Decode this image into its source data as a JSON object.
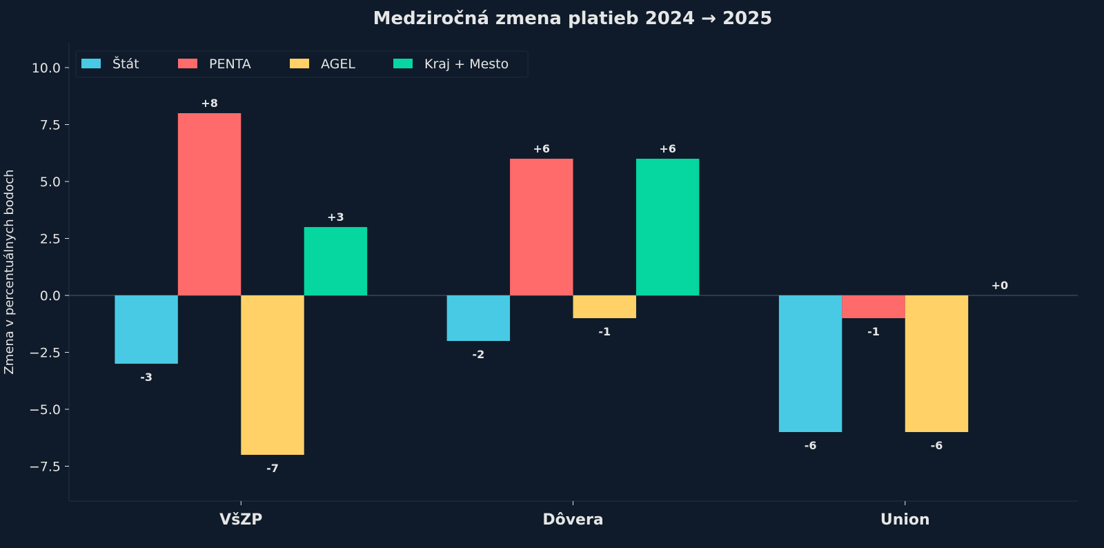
{
  "chart_data": {
    "type": "bar",
    "title": "Medziročná zmena platieb 2024 → 2025",
    "xlabel": "",
    "ylabel": "Zmena v percentuálnych bodoch",
    "categories": [
      "VšZP",
      "Dôvera",
      "Union"
    ],
    "series": [
      {
        "name": "Štát",
        "color": "#48cae4",
        "values": [
          -3,
          -2,
          -6
        ],
        "labels": [
          "-3",
          "-2",
          "-6"
        ]
      },
      {
        "name": "PENTA",
        "color": "#ff6b6b",
        "values": [
          8,
          6,
          -1
        ],
        "labels": [
          "+8",
          "+6",
          "-1"
        ]
      },
      {
        "name": "AGEL",
        "color": "#ffd166",
        "values": [
          -7,
          -1,
          -6
        ],
        "labels": [
          "-7",
          "-1",
          "-6"
        ]
      },
      {
        "name": "Kraj + Mesto",
        "color": "#06d6a0",
        "values": [
          3,
          6,
          0
        ],
        "labels": [
          "+3",
          "+6",
          "+0"
        ]
      }
    ],
    "ylim": [
      -9.03,
      11.09
    ],
    "yticks": [
      -7.5,
      -5.0,
      -2.5,
      0.0,
      2.5,
      5.0,
      7.5,
      10.0
    ],
    "ytick_labels": [
      "−7.5",
      "−5.0",
      "−2.5",
      "0.0",
      "2.5",
      "5.0",
      "7.5",
      "10.0"
    ],
    "grid": false,
    "zero_line": true,
    "legend_placement": "top-left",
    "background": "#0f1b2a",
    "text_color": "#e6e6e6"
  }
}
